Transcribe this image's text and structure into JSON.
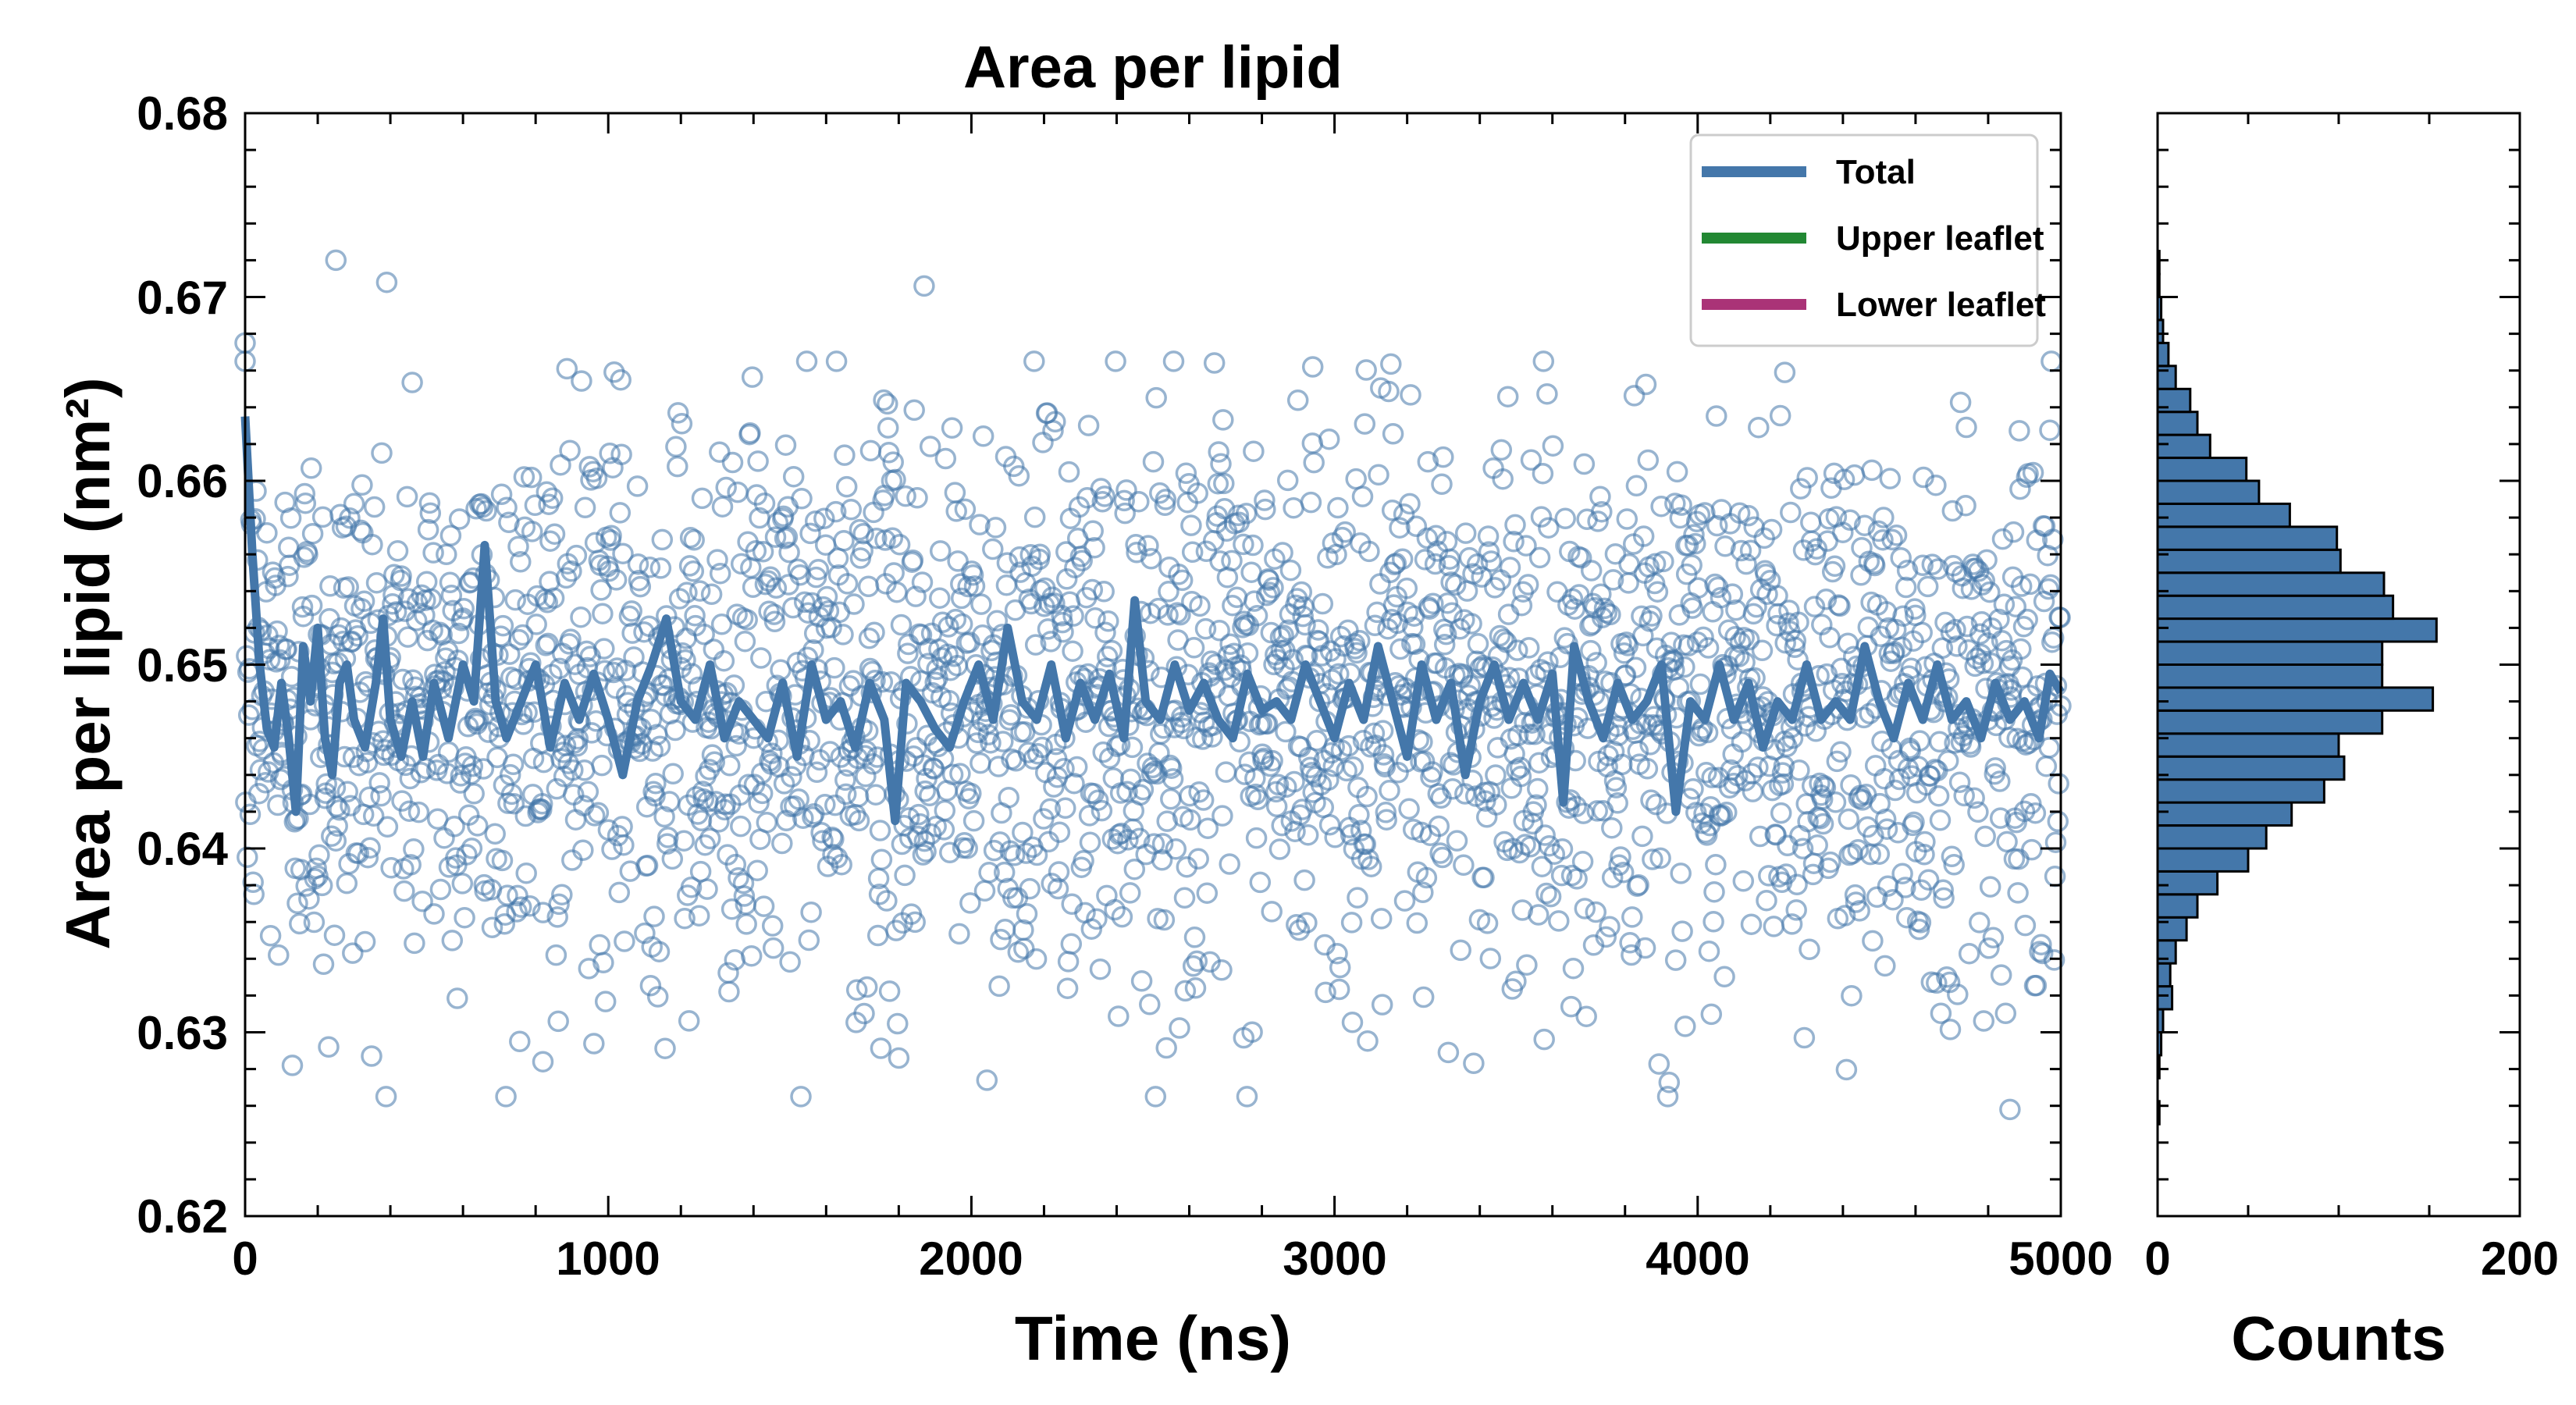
{
  "colors": {
    "total": "#4477aa",
    "upper": "#228833",
    "lower": "#aa3377",
    "hist_edge": "#000000"
  },
  "chart_data": [
    {
      "type": "line",
      "title": "Area per lipid",
      "xlabel": "Time (ns)",
      "ylabel": "Area per lipid (nm²)",
      "xlim": [
        0,
        5000
      ],
      "ylim": [
        0.62,
        0.68
      ],
      "x_ticks": [
        "0",
        "1000",
        "2000",
        "3000",
        "4000",
        "5000"
      ],
      "y_ticks": [
        "0.62",
        "0.63",
        "0.64",
        "0.65",
        "0.66",
        "0.67",
        "0.68"
      ],
      "grid": false,
      "legend_position": "top-right",
      "legend": [
        {
          "label": "Total",
          "color": "#4477aa"
        },
        {
          "label": "Upper leaflet",
          "color": "#228833"
        },
        {
          "label": "Lower leaflet",
          "color": "#aa3377"
        }
      ],
      "series": [
        {
          "name": "Total",
          "style": "scatter-hollow",
          "note_count": 2500,
          "mean": 0.648,
          "std": 0.0075,
          "outliers": [
            {
              "x": 250,
              "y": 0.672
            },
            {
              "x": 390,
              "y": 0.6708
            },
            {
              "x": 1870,
              "y": 0.6706
            },
            {
              "x": 2940,
              "y": 0.6662
            },
            {
              "x": 4240,
              "y": 0.6659
            },
            {
              "x": 0,
              "y": 0.6675
            },
            {
              "x": 820,
              "y": 0.6284
            },
            {
              "x": 1800,
              "y": 0.6286
            },
            {
              "x": 130,
              "y": 0.6282
            },
            {
              "x": 230,
              "y": 0.6292
            },
            {
              "x": 2750,
              "y": 0.6297
            },
            {
              "x": 4860,
              "y": 0.6258
            }
          ]
        },
        {
          "name": "Total",
          "style": "line",
          "points": [
            [
              0,
              0.6635
            ],
            [
              20,
              0.656
            ],
            [
              40,
              0.65
            ],
            [
              60,
              0.6465
            ],
            [
              80,
              0.6455
            ],
            [
              100,
              0.649
            ],
            [
              120,
              0.646
            ],
            [
              140,
              0.642
            ],
            [
              160,
              0.651
            ],
            [
              180,
              0.648
            ],
            [
              200,
              0.652
            ],
            [
              220,
              0.646
            ],
            [
              240,
              0.644
            ],
            [
              260,
              0.649
            ],
            [
              280,
              0.65
            ],
            [
              300,
              0.647
            ],
            [
              330,
              0.6455
            ],
            [
              360,
              0.649
            ],
            [
              380,
              0.6525
            ],
            [
              400,
              0.647
            ],
            [
              430,
              0.645
            ],
            [
              460,
              0.648
            ],
            [
              490,
              0.645
            ],
            [
              520,
              0.649
            ],
            [
              560,
              0.646
            ],
            [
              600,
              0.65
            ],
            [
              630,
              0.648
            ],
            [
              660,
              0.6565
            ],
            [
              690,
              0.648
            ],
            [
              720,
              0.646
            ],
            [
              760,
              0.648
            ],
            [
              800,
              0.65
            ],
            [
              840,
              0.6455
            ],
            [
              880,
              0.649
            ],
            [
              920,
              0.647
            ],
            [
              960,
              0.6495
            ],
            [
              1000,
              0.647
            ],
            [
              1040,
              0.644
            ],
            [
              1080,
              0.648
            ],
            [
              1120,
              0.65
            ],
            [
              1160,
              0.6525
            ],
            [
              1200,
              0.648
            ],
            [
              1240,
              0.647
            ],
            [
              1280,
              0.65
            ],
            [
              1320,
              0.646
            ],
            [
              1360,
              0.648
            ],
            [
              1400,
              0.647
            ],
            [
              1440,
              0.646
            ],
            [
              1480,
              0.649
            ],
            [
              1520,
              0.645
            ],
            [
              1560,
              0.65
            ],
            [
              1600,
              0.647
            ],
            [
              1640,
              0.648
            ],
            [
              1680,
              0.6455
            ],
            [
              1720,
              0.649
            ],
            [
              1760,
              0.647
            ],
            [
              1790,
              0.6415
            ],
            [
              1820,
              0.649
            ],
            [
              1860,
              0.648
            ],
            [
              1900,
              0.6465
            ],
            [
              1940,
              0.6455
            ],
            [
              1980,
              0.648
            ],
            [
              2020,
              0.65
            ],
            [
              2060,
              0.647
            ],
            [
              2100,
              0.652
            ],
            [
              2140,
              0.648
            ],
            [
              2180,
              0.647
            ],
            [
              2220,
              0.65
            ],
            [
              2260,
              0.646
            ],
            [
              2300,
              0.649
            ],
            [
              2340,
              0.647
            ],
            [
              2380,
              0.6495
            ],
            [
              2420,
              0.646
            ],
            [
              2450,
              0.6535
            ],
            [
              2480,
              0.648
            ],
            [
              2520,
              0.647
            ],
            [
              2560,
              0.65
            ],
            [
              2600,
              0.6475
            ],
            [
              2640,
              0.649
            ],
            [
              2680,
              0.647
            ],
            [
              2720,
              0.646
            ],
            [
              2760,
              0.6495
            ],
            [
              2800,
              0.6475
            ],
            [
              2840,
              0.648
            ],
            [
              2880,
              0.647
            ],
            [
              2920,
              0.65
            ],
            [
              2960,
              0.648
            ],
            [
              3000,
              0.646
            ],
            [
              3040,
              0.649
            ],
            [
              3080,
              0.647
            ],
            [
              3120,
              0.651
            ],
            [
              3160,
              0.648
            ],
            [
              3200,
              0.645
            ],
            [
              3240,
              0.65
            ],
            [
              3280,
              0.647
            ],
            [
              3320,
              0.649
            ],
            [
              3360,
              0.644
            ],
            [
              3400,
              0.648
            ],
            [
              3440,
              0.65
            ],
            [
              3480,
              0.647
            ],
            [
              3520,
              0.649
            ],
            [
              3560,
              0.647
            ],
            [
              3600,
              0.6495
            ],
            [
              3630,
              0.6425
            ],
            [
              3660,
              0.651
            ],
            [
              3700,
              0.648
            ],
            [
              3740,
              0.646
            ],
            [
              3780,
              0.649
            ],
            [
              3820,
              0.647
            ],
            [
              3860,
              0.648
            ],
            [
              3900,
              0.65
            ],
            [
              3940,
              0.642
            ],
            [
              3980,
              0.648
            ],
            [
              4020,
              0.647
            ],
            [
              4060,
              0.65
            ],
            [
              4100,
              0.647
            ],
            [
              4140,
              0.649
            ],
            [
              4180,
              0.6455
            ],
            [
              4220,
              0.648
            ],
            [
              4260,
              0.647
            ],
            [
              4300,
              0.65
            ],
            [
              4340,
              0.647
            ],
            [
              4380,
              0.648
            ],
            [
              4420,
              0.647
            ],
            [
              4460,
              0.651
            ],
            [
              4500,
              0.648
            ],
            [
              4540,
              0.646
            ],
            [
              4580,
              0.649
            ],
            [
              4620,
              0.647
            ],
            [
              4660,
              0.65
            ],
            [
              4700,
              0.647
            ],
            [
              4740,
              0.648
            ],
            [
              4780,
              0.646
            ],
            [
              4820,
              0.649
            ],
            [
              4860,
              0.647
            ],
            [
              4900,
              0.648
            ],
            [
              4940,
              0.646
            ],
            [
              4970,
              0.6495
            ],
            [
              5000,
              0.6485
            ]
          ]
        }
      ]
    },
    {
      "type": "bar",
      "orientation": "horizontal",
      "xlabel": "Counts",
      "xlim": [
        0,
        200
      ],
      "x_ticks": [
        "0",
        "200"
      ],
      "ylim": [
        0.62,
        0.68
      ],
      "bin_width": 0.00125,
      "bins": [
        {
          "y0": 0.625,
          "count": 1
        },
        {
          "y0": 0.62625,
          "count": 0
        },
        {
          "y0": 0.6275,
          "count": 1
        },
        {
          "y0": 0.62875,
          "count": 2
        },
        {
          "y0": 0.63,
          "count": 3
        },
        {
          "y0": 0.63125,
          "count": 8
        },
        {
          "y0": 0.6325,
          "count": 7
        },
        {
          "y0": 0.63375,
          "count": 10
        },
        {
          "y0": 0.635,
          "count": 16
        },
        {
          "y0": 0.63625,
          "count": 22
        },
        {
          "y0": 0.6375,
          "count": 33
        },
        {
          "y0": 0.63875,
          "count": 50
        },
        {
          "y0": 0.64,
          "count": 60
        },
        {
          "y0": 0.64125,
          "count": 74
        },
        {
          "y0": 0.6425,
          "count": 92
        },
        {
          "y0": 0.64375,
          "count": 103
        },
        {
          "y0": 0.645,
          "count": 100
        },
        {
          "y0": 0.64625,
          "count": 124
        },
        {
          "y0": 0.6475,
          "count": 152
        },
        {
          "y0": 0.64875,
          "count": 124
        },
        {
          "y0": 0.65,
          "count": 124
        },
        {
          "y0": 0.65125,
          "count": 154
        },
        {
          "y0": 0.6525,
          "count": 130
        },
        {
          "y0": 0.65375,
          "count": 125
        },
        {
          "y0": 0.655,
          "count": 101
        },
        {
          "y0": 0.65625,
          "count": 99
        },
        {
          "y0": 0.6575,
          "count": 73
        },
        {
          "y0": 0.65875,
          "count": 56
        },
        {
          "y0": 0.66,
          "count": 49
        },
        {
          "y0": 0.66125,
          "count": 29
        },
        {
          "y0": 0.6625,
          "count": 22
        },
        {
          "y0": 0.66375,
          "count": 18
        },
        {
          "y0": 0.665,
          "count": 10
        },
        {
          "y0": 0.66625,
          "count": 6
        },
        {
          "y0": 0.6675,
          "count": 3
        },
        {
          "y0": 0.66875,
          "count": 2
        },
        {
          "y0": 0.67,
          "count": 1
        },
        {
          "y0": 0.67125,
          "count": 1
        }
      ]
    }
  ]
}
